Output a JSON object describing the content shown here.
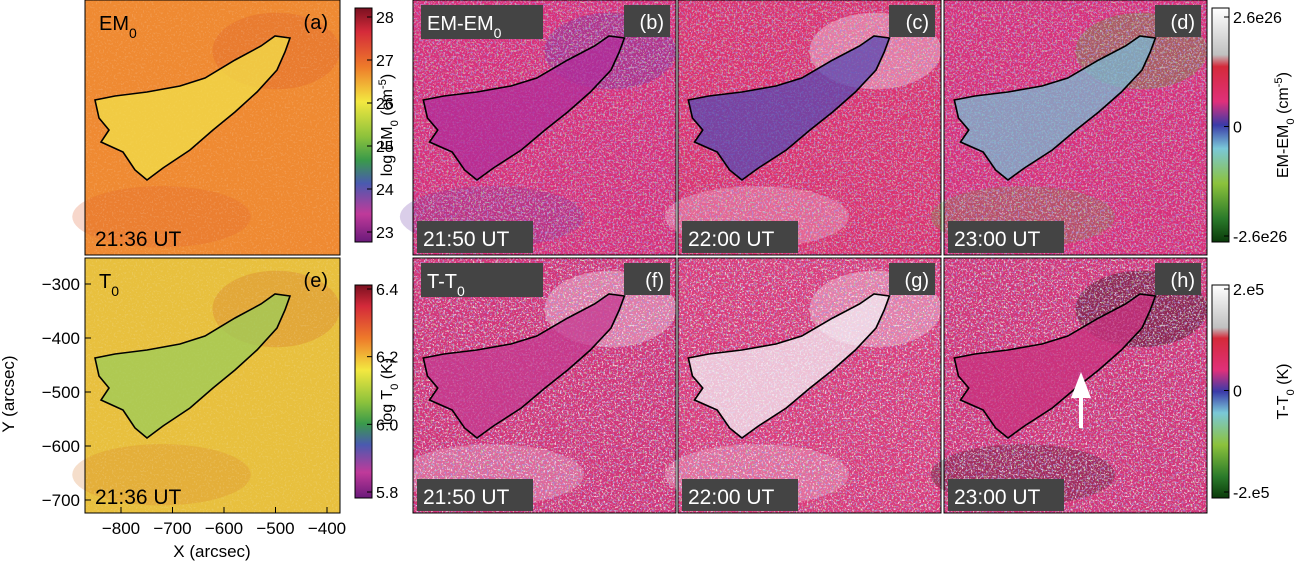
{
  "panels": [
    {
      "title": [
        {
          "t": "EM"
        },
        {
          "t": "0",
          "shift": "sub"
        }
      ],
      "label": "(a)",
      "time": "21:36 UT"
    },
    {
      "title": [
        {
          "t": "EM-EM"
        },
        {
          "t": "0",
          "shift": "sub"
        }
      ],
      "label": "(b)",
      "time": "21:50 UT"
    },
    {
      "label": "(c)",
      "time": "22:00 UT"
    },
    {
      "label": "(d)",
      "time": "23:00 UT"
    },
    {
      "title": [
        {
          "t": "T"
        },
        {
          "t": "0",
          "shift": "sub"
        }
      ],
      "label": "(e)",
      "time": "21:36 UT"
    },
    {
      "title": [
        {
          "t": "T-T"
        },
        {
          "t": "0",
          "shift": "sub"
        }
      ],
      "label": "(f)",
      "time": "21:50 UT"
    },
    {
      "label": "(g)",
      "time": "22:00 UT"
    },
    {
      "label": "(h)",
      "time": "23:00 UT"
    }
  ],
  "colorbars": [
    {
      "label": [
        {
          "t": "log EM"
        },
        {
          "t": "0",
          "shift": "sub"
        },
        {
          "t": " (cm"
        },
        {
          "t": "-5",
          "shift": "super"
        },
        {
          "t": ")"
        }
      ],
      "ticks": [
        "28",
        "27",
        "26",
        "25",
        "24",
        "23"
      ]
    },
    {
      "label": [
        {
          "t": "EM-EM"
        },
        {
          "t": "0",
          "shift": "sub"
        },
        {
          "t": " (cm"
        },
        {
          "t": "-5",
          "shift": "super"
        },
        {
          "t": ")"
        }
      ],
      "ticks": [
        "2.6e26",
        "0",
        "-2.6e26"
      ]
    },
    {
      "label": [
        {
          "t": "log T"
        },
        {
          "t": "0",
          "shift": "sub"
        },
        {
          "t": " (K)"
        }
      ],
      "ticks": [
        "6.4",
        "6.2",
        "6.0",
        "5.8"
      ]
    },
    {
      "label": [
        {
          "t": "T-T"
        },
        {
          "t": "0",
          "shift": "sub"
        },
        {
          "t": " (K)"
        }
      ],
      "ticks": [
        "2.e5",
        "0",
        "-2.e5"
      ]
    }
  ],
  "x_axis": {
    "label": "X (arcsec)",
    "ticks": [
      "−800",
      "−700",
      "−600",
      "−500",
      "−400"
    ]
  },
  "y_axis": {
    "label": "Y (arcsec)",
    "ticks": [
      "−300",
      "−400",
      "−500",
      "−600",
      "−700"
    ]
  }
}
